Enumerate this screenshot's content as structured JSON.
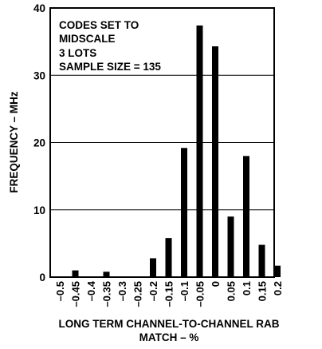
{
  "chart_data": {
    "type": "bar",
    "categories": [
      "-0.5",
      "-0.45",
      "-0.4",
      "-0.35",
      "-0.3",
      "-0.25",
      "-0.2",
      "-0.15",
      "-0.1",
      "-0.05",
      "0",
      "0.05",
      "0.1",
      "0.15",
      "0.2"
    ],
    "tick_labels": [
      "–0.5",
      "–0.45",
      "–0.4",
      "–0.35",
      "–0.3",
      "–0.25",
      "–0.2",
      "–0.15",
      "–0.1",
      "–0.05",
      "0",
      "0.05",
      "0.1",
      "0.15",
      "0.2"
    ],
    "values": [
      0,
      1,
      0,
      0.8,
      0,
      0,
      2.8,
      5.8,
      19.2,
      37.4,
      34.3,
      9,
      18,
      4.8,
      1.7
    ],
    "ylim": [
      0,
      40
    ],
    "yticks": [
      0,
      10,
      20,
      30,
      40
    ],
    "ylabel": "FREQUENCY – MHz",
    "xlabel_line1": "LONG TERM CHANNEL-TO-CHANNEL RAB",
    "xlabel_line2": "MATCH – %",
    "annotation": [
      "CODES SET TO",
      "MIDSCALE",
      "3 LOTS",
      "SAMPLE SIZE = 135"
    ],
    "grid": "horizontal",
    "bar_color": "#000000"
  }
}
